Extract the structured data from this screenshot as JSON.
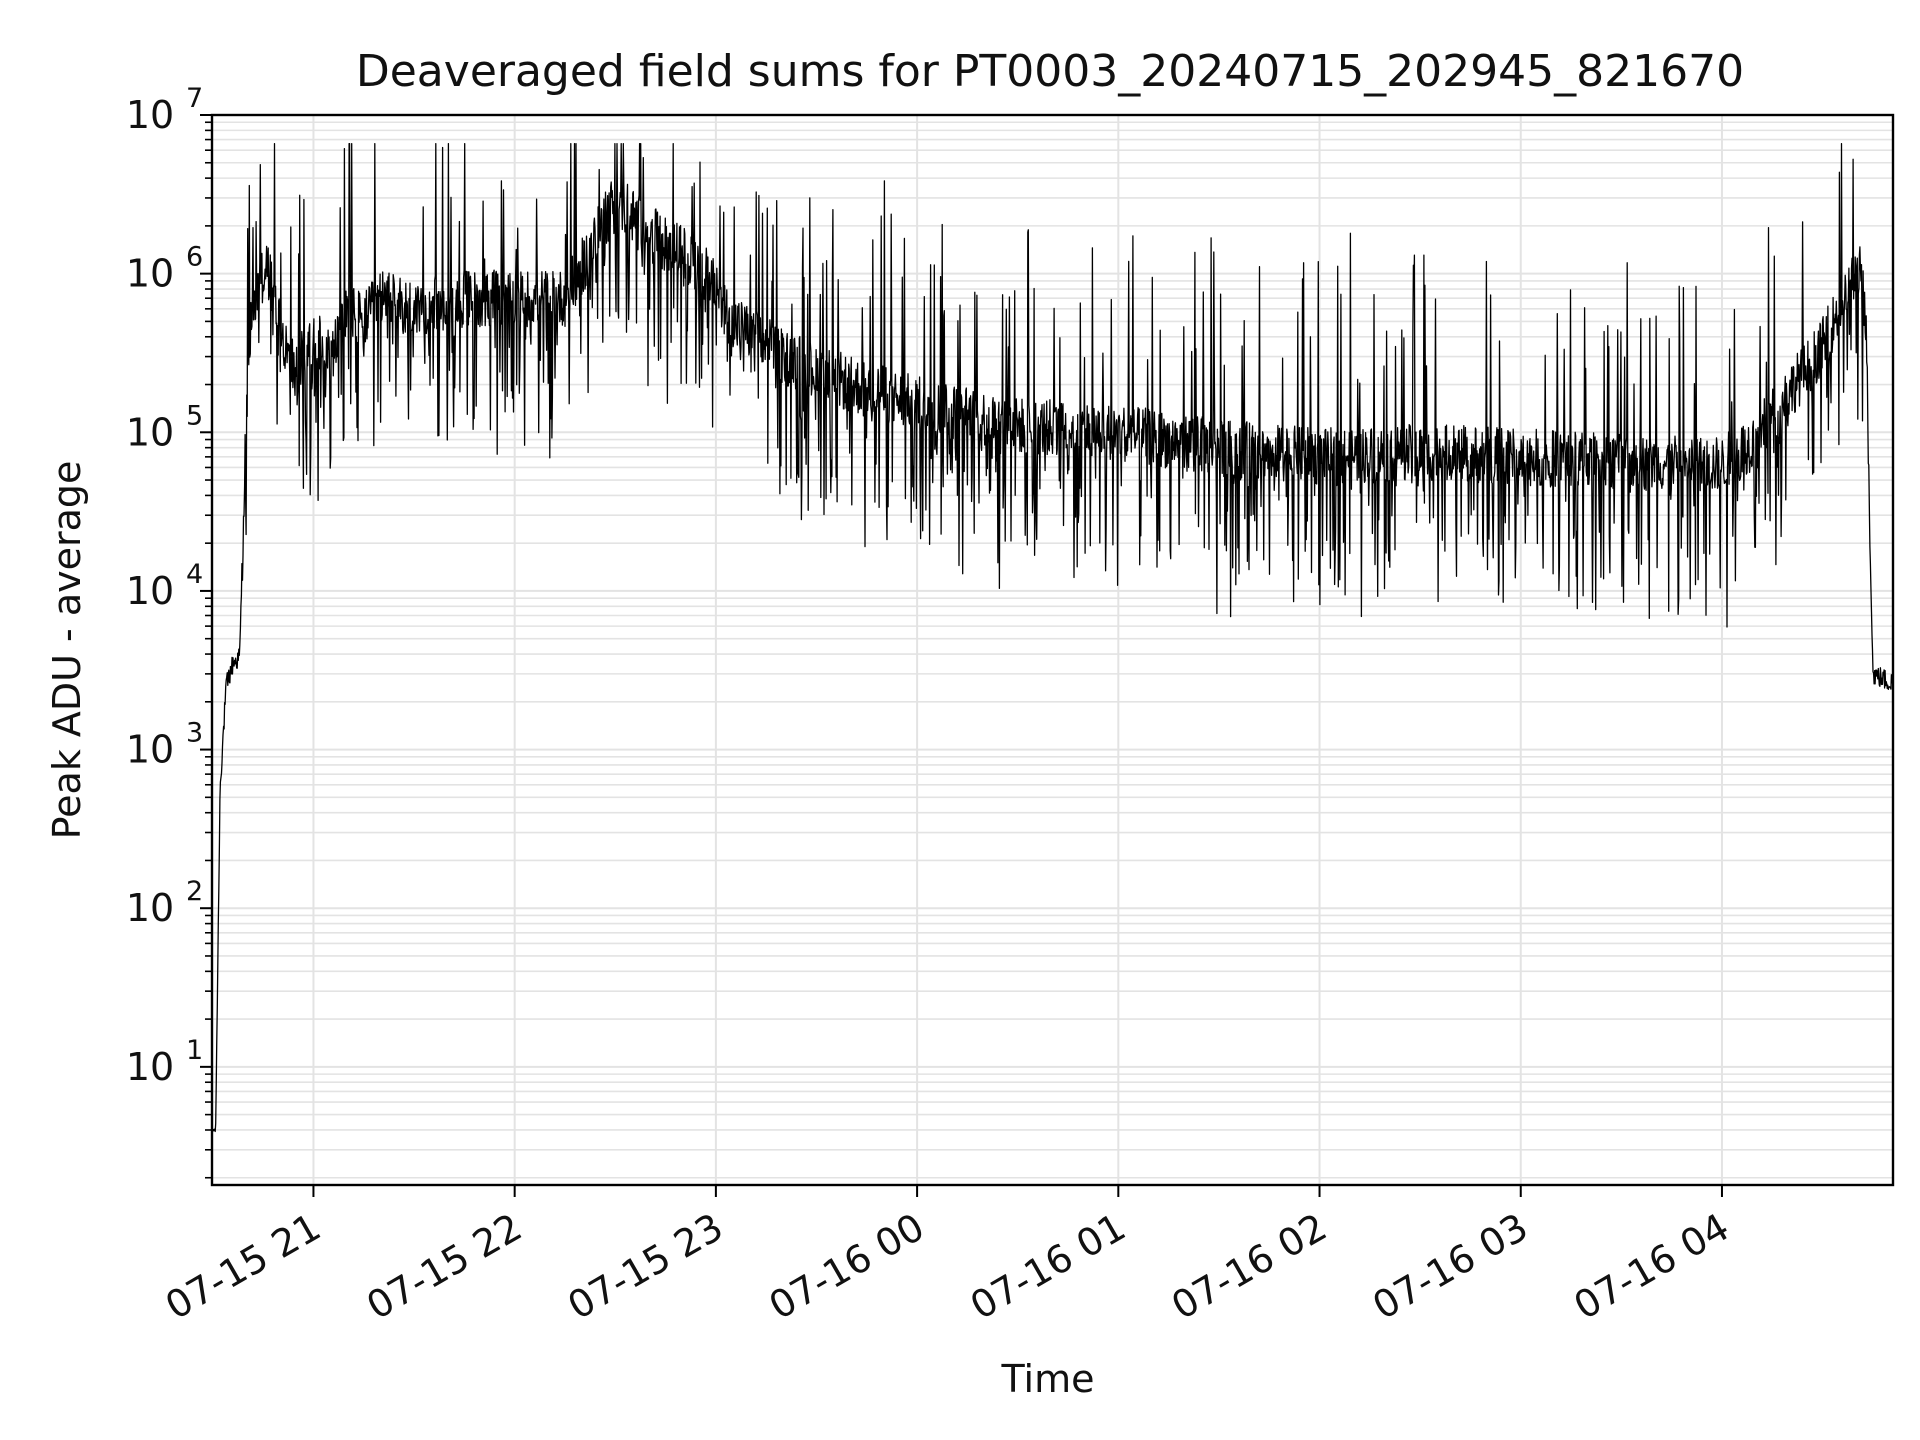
{
  "chart_data": {
    "type": "line",
    "title": "Deaveraged field sums for PT0003_20240715_202945_821670",
    "xlabel": "Time",
    "ylabel": "Peak ADU - average",
    "x_is_datetime": true,
    "xlim": [
      "2024-07-15 20:29:45",
      "2024-07-16 04:51:00"
    ],
    "x_ticks": [
      {
        "label": "07-15 21",
        "value": "2024-07-15 21:00"
      },
      {
        "label": "07-15 22",
        "value": "2024-07-15 22:00"
      },
      {
        "label": "07-15 23",
        "value": "2024-07-15 23:00"
      },
      {
        "label": "07-16 00",
        "value": "2024-07-16 00:00"
      },
      {
        "label": "07-16 01",
        "value": "2024-07-16 01:00"
      },
      {
        "label": "07-16 02",
        "value": "2024-07-16 02:00"
      },
      {
        "label": "07-16 03",
        "value": "2024-07-16 03:00"
      },
      {
        "label": "07-16 04",
        "value": "2024-07-16 04:00"
      }
    ],
    "y_scale": "log",
    "ylim": [
      1.8,
      10000000
    ],
    "y_ticks": [
      {
        "base": "10",
        "exp": "1",
        "value": 10
      },
      {
        "base": "10",
        "exp": "2",
        "value": 100
      },
      {
        "base": "10",
        "exp": "3",
        "value": 1000
      },
      {
        "base": "10",
        "exp": "4",
        "value": 10000
      },
      {
        "base": "10",
        "exp": "5",
        "value": 100000
      },
      {
        "base": "10",
        "exp": "6",
        "value": 1000000
      },
      {
        "base": "10",
        "exp": "7",
        "value": 10000000
      }
    ],
    "grid": true,
    "minor_grid": true,
    "line_color": "#000000",
    "grid_color": "#e3e3e3",
    "series": [
      {
        "x": [
          "2024-07-15 20:29:45",
          "2024-07-15 20:30:50",
          "2024-07-15 20:32:10",
          "2024-07-15 20:34:00",
          "2024-07-15 20:36:00",
          "2024-07-15 20:38:00",
          "2024-07-15 20:40:00",
          "2024-07-15 20:41:30",
          "2024-07-15 20:44:00",
          "2024-07-15 20:46:00",
          "2024-07-15 20:48:00",
          "2024-07-15 20:50:00",
          "2024-07-15 20:52:30",
          "2024-07-15 20:55:00",
          "2024-07-15 21:00:00",
          "2024-07-15 21:05:00",
          "2024-07-15 21:10:00",
          "2024-07-15 21:15:00",
          "2024-07-15 21:20:00",
          "2024-07-15 21:30:00",
          "2024-07-15 21:45:00",
          "2024-07-15 22:00:00",
          "2024-07-15 22:15:00",
          "2024-07-15 22:22:00",
          "2024-07-15 22:30:00",
          "2024-07-15 22:38:00",
          "2024-07-15 22:45:00",
          "2024-07-15 22:55:00",
          "2024-07-15 23:05:00",
          "2024-07-15 23:20:00",
          "2024-07-15 23:40:00",
          "2024-07-16 00:00:00",
          "2024-07-16 00:30:00",
          "2024-07-16 01:00:00",
          "2024-07-16 01:30:00",
          "2024-07-16 02:00:00",
          "2024-07-16 02:30:00",
          "2024-07-16 03:00:00",
          "2024-07-16 03:30:00",
          "2024-07-16 04:00:00",
          "2024-07-16 04:10:00",
          "2024-07-16 04:20:00",
          "2024-07-16 04:30:00",
          "2024-07-16 04:35:00",
          "2024-07-16 04:40:00",
          "2024-07-16 04:42:00",
          "2024-07-16 04:43:00",
          "2024-07-16 04:45:00",
          "2024-07-16 04:51:00"
        ],
        "y": [
          4,
          4,
          600,
          2500,
          3500,
          3800,
          150000,
          500000,
          900000,
          1100000,
          800000,
          500000,
          300000,
          250000,
          400000,
          300000,
          600000,
          500000,
          700000,
          600000,
          700000,
          700000,
          700000,
          1300000,
          3000000,
          2000000,
          1500000,
          1200000,
          500000,
          300000,
          200000,
          150000,
          110000,
          100000,
          80000,
          70000,
          75000,
          70000,
          65000,
          62000,
          90000,
          180000,
          350000,
          600000,
          1000000,
          1000000,
          400000,
          3000,
          2600
        ]
      }
    ]
  }
}
